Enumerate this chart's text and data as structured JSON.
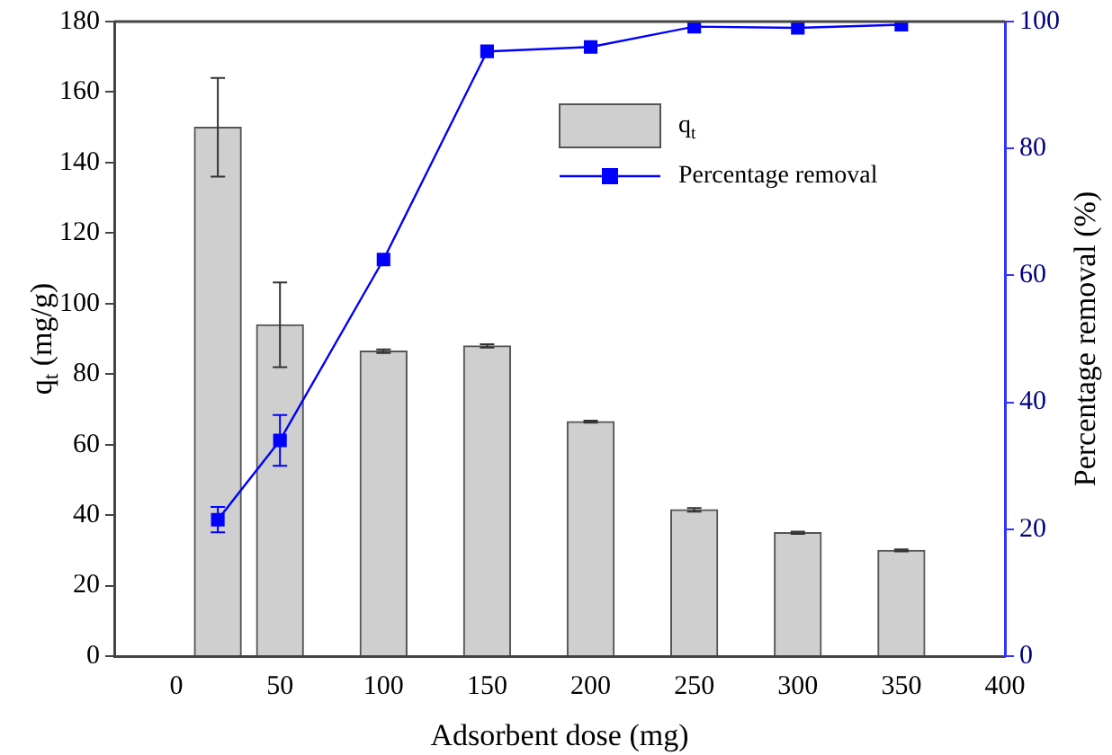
{
  "chart_data": {
    "type": "bar",
    "xlabel": "Adsorbent dose (mg)",
    "ylabel": "q$_{t}$ (mg/g)",
    "y2label": "Percentage removal (%)",
    "x": [
      20,
      50,
      100,
      150,
      200,
      250,
      300,
      350
    ],
    "series": [
      {
        "name": "q$_{t}$",
        "color": "#cfcfcf",
        "values": [
          150,
          94,
          86.5,
          88,
          66.5,
          41.5,
          35,
          30
        ],
        "errors": [
          14,
          12,
          0.5,
          0.5,
          0.3,
          0.5,
          0.3,
          0.3
        ]
      },
      {
        "name": "Percentage removal",
        "type": "line",
        "axis": "y2",
        "color": "#0000ff",
        "values": [
          21.5,
          34,
          62.5,
          95.3,
          96,
          99.2,
          99,
          99.5
        ],
        "errors": [
          2,
          4,
          null,
          null,
          null,
          null,
          null,
          null
        ]
      }
    ],
    "xlim": [
      -30,
      400
    ],
    "xticks": [
      0,
      50,
      100,
      150,
      200,
      250,
      300,
      350,
      400
    ],
    "ylim": [
      0,
      180
    ],
    "yticks": [
      0,
      20,
      40,
      60,
      80,
      100,
      120,
      140,
      160,
      180
    ],
    "y2lim": [
      0,
      100
    ],
    "y2ticks": [
      0,
      20,
      40,
      60,
      80,
      100
    ],
    "grid": false,
    "legend": "top right",
    "marker": "square",
    "line_style": "solid"
  }
}
